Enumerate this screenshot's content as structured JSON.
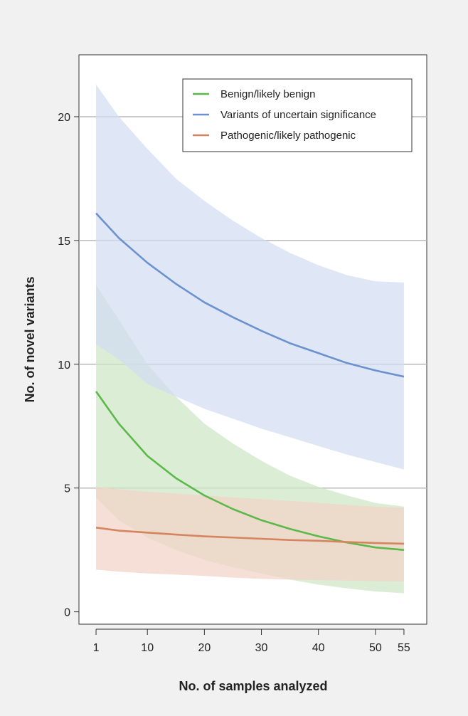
{
  "chart_data": {
    "type": "line",
    "title": "",
    "xlabel": "No. of samples analyzed",
    "ylabel": "No. of novel variants",
    "xlim": [
      -2,
      59
    ],
    "ylim": [
      -0.5,
      22.5
    ],
    "x_ticks": [
      1,
      10,
      20,
      30,
      40,
      50,
      55
    ],
    "y_ticks": [
      0,
      5,
      10,
      15,
      20
    ],
    "grid": "horizontal",
    "legend_position": "top-right",
    "x": [
      1,
      5,
      10,
      15,
      20,
      25,
      30,
      35,
      40,
      45,
      50,
      55
    ],
    "series": [
      {
        "name": "Benign/likely benign",
        "color": "#5cb84a",
        "band_color": "#cfe6c6",
        "values": [
          8.9,
          7.6,
          6.3,
          5.4,
          4.7,
          4.15,
          3.7,
          3.35,
          3.05,
          2.8,
          2.6,
          2.5
        ],
        "upper": [
          13.2,
          11.8,
          10.0,
          8.7,
          7.6,
          6.8,
          6.1,
          5.5,
          5.05,
          4.7,
          4.4,
          4.25
        ],
        "lower": [
          4.6,
          3.7,
          3.0,
          2.5,
          2.1,
          1.8,
          1.55,
          1.3,
          1.1,
          0.95,
          0.82,
          0.75
        ]
      },
      {
        "name": "Variants of uncertain significance",
        "color": "#6b92cf",
        "band_color": "#d3ddf1",
        "values": [
          16.1,
          15.1,
          14.1,
          13.25,
          12.5,
          11.9,
          11.35,
          10.85,
          10.45,
          10.05,
          9.75,
          9.5
        ],
        "upper": [
          21.3,
          20.0,
          18.7,
          17.5,
          16.6,
          15.8,
          15.1,
          14.5,
          14.0,
          13.6,
          13.35,
          13.3
        ],
        "lower": [
          10.8,
          10.2,
          9.2,
          8.7,
          8.2,
          7.8,
          7.4,
          7.05,
          6.7,
          6.35,
          6.05,
          5.75
        ]
      },
      {
        "name": "Pathogenic/likely pathogenic",
        "color": "#d4845f",
        "band_color": "#f3d3c6",
        "values": [
          3.4,
          3.28,
          3.2,
          3.12,
          3.05,
          3.0,
          2.95,
          2.9,
          2.87,
          2.82,
          2.78,
          2.75
        ],
        "upper": [
          5.05,
          4.95,
          4.85,
          4.78,
          4.7,
          4.62,
          4.55,
          4.48,
          4.4,
          4.32,
          4.25,
          4.2
        ],
        "lower": [
          1.7,
          1.62,
          1.55,
          1.5,
          1.45,
          1.38,
          1.33,
          1.3,
          1.28,
          1.26,
          1.24,
          1.22
        ]
      }
    ]
  }
}
